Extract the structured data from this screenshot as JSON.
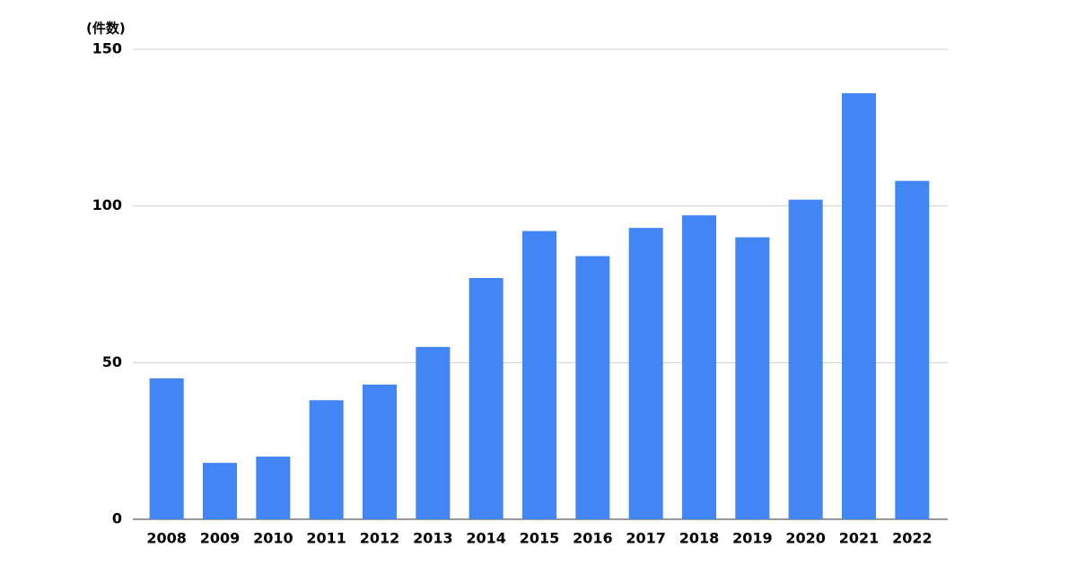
{
  "chart_data": {
    "type": "bar",
    "y_axis_label": "(件数)",
    "categories": [
      "2008",
      "2009",
      "2010",
      "2011",
      "2012",
      "2013",
      "2014",
      "2015",
      "2016",
      "2017",
      "2018",
      "2019",
      "2020",
      "2021",
      "2022"
    ],
    "values": [
      45,
      18,
      20,
      38,
      43,
      55,
      77,
      92,
      84,
      93,
      97,
      90,
      102,
      136,
      108
    ],
    "color": "#4285f4",
    "ylim": [
      0,
      150
    ],
    "yticks": [
      0,
      50,
      100,
      150
    ],
    "grid": true
  }
}
